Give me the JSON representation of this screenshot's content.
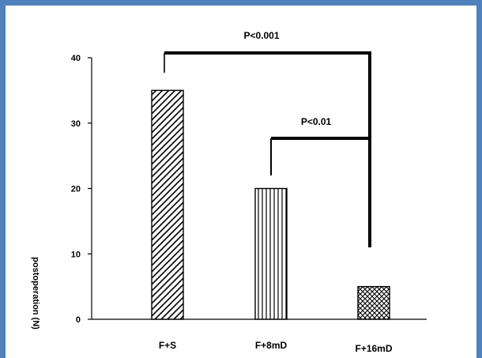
{
  "chart_data": {
    "type": "bar",
    "categories": [
      "F+S",
      "F+8mD",
      "F+16mD"
    ],
    "values": [
      35,
      20,
      5
    ],
    "ylabel": "postoperation (N)",
    "xlabel": "",
    "ylim": [
      0,
      40
    ],
    "yticks": [
      0,
      10,
      20,
      30,
      40
    ],
    "grid": false,
    "legend": "none",
    "bar_patterns": [
      "diagonal-hatch",
      "vertical-lines",
      "crosshatch"
    ],
    "annotations": [
      {
        "label": "P<0.001",
        "from": "F+S",
        "to": "F+16mD"
      },
      {
        "label": "P<0.01",
        "from": "F+8mD",
        "to": "F+16mD"
      }
    ]
  },
  "colors": {
    "frame": "#4f81bd",
    "bars": "#000000"
  }
}
